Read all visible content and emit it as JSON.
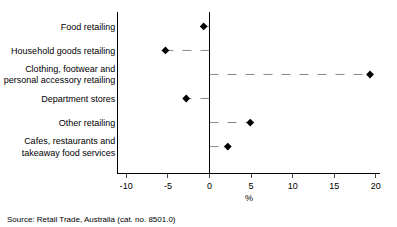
{
  "chart_data": {
    "type": "dot",
    "orientation": "horizontal",
    "categories": [
      "Food retailing",
      "Household goods retailing",
      "Clothing, footwear and\npersonal accessory retailing",
      "Department stores",
      "Other retailing",
      "Cafes, restaurants and\ntakeaway food services"
    ],
    "values": [
      -0.7,
      -5.3,
      19.3,
      -2.8,
      4.9,
      2.2
    ],
    "color": "#000000",
    "marker": "diamond",
    "line_style": "dash",
    "x_label": "%",
    "xlim": [
      -11,
      20.5
    ],
    "xticks": [
      -10,
      -5,
      0,
      5,
      10,
      15,
      20
    ],
    "grid": false,
    "source": "Source: Retail Trade, Australia (cat. no. 8501.0)"
  }
}
